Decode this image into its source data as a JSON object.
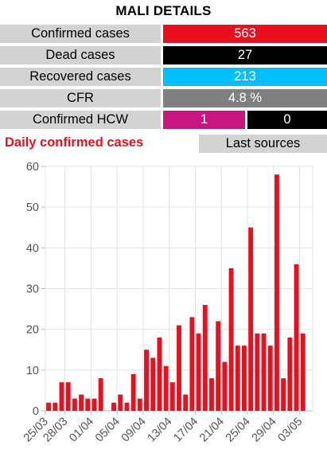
{
  "title": "MALI DETAILS",
  "stats": [
    {
      "label": "Confirmed cases",
      "value": "563",
      "color": "#e8101f"
    },
    {
      "label": "Dead cases",
      "value": "27",
      "color": "#000000"
    },
    {
      "label": "Recovered cases",
      "value": "213",
      "color": "#00bfff"
    },
    {
      "label": "CFR",
      "value": "4.8 %",
      "color": "#808080"
    }
  ],
  "hcw": {
    "label": "Confirmed HCW",
    "value1": "1",
    "color1": "#c8157f",
    "value2": "0",
    "color2": "#000000"
  },
  "daily_title": "Daily confirmed cases",
  "daily_title_color": "#e8101f",
  "last_sources_label": "Last sources",
  "chart_data": {
    "type": "bar",
    "color": "#e8101f",
    "ylim": [
      0,
      60
    ],
    "yticks": [
      0,
      10,
      20,
      30,
      40,
      50,
      60
    ],
    "xticks": [
      "25/03",
      "28/03",
      "01/04",
      "05/04",
      "09/04",
      "13/04",
      "17/04",
      "21/04",
      "25/04",
      "29/04",
      "03/05"
    ],
    "categories": [
      "25/03",
      "26/03",
      "27/03",
      "28/03",
      "29/03",
      "30/03",
      "31/03",
      "01/04",
      "02/04",
      "03/04",
      "04/04",
      "05/04",
      "06/04",
      "07/04",
      "08/04",
      "09/04",
      "10/04",
      "11/04",
      "12/04",
      "13/04",
      "14/04",
      "15/04",
      "16/04",
      "17/04",
      "18/04",
      "19/04",
      "20/04",
      "21/04",
      "22/04",
      "23/04",
      "24/04",
      "25/04",
      "26/04",
      "27/04",
      "28/04",
      "29/04",
      "30/04",
      "01/05",
      "02/05",
      "03/05",
      "04/05"
    ],
    "values": [
      2,
      2,
      7,
      7,
      3,
      4,
      3,
      3,
      8,
      0,
      2,
      4,
      2,
      9,
      3,
      15,
      13,
      18,
      11,
      7,
      21,
      4,
      23,
      19,
      26,
      8,
      22,
      12,
      35,
      16,
      16,
      45,
      19,
      19,
      16,
      58,
      8,
      18,
      36,
      19,
      0
    ],
    "grid": true
  }
}
